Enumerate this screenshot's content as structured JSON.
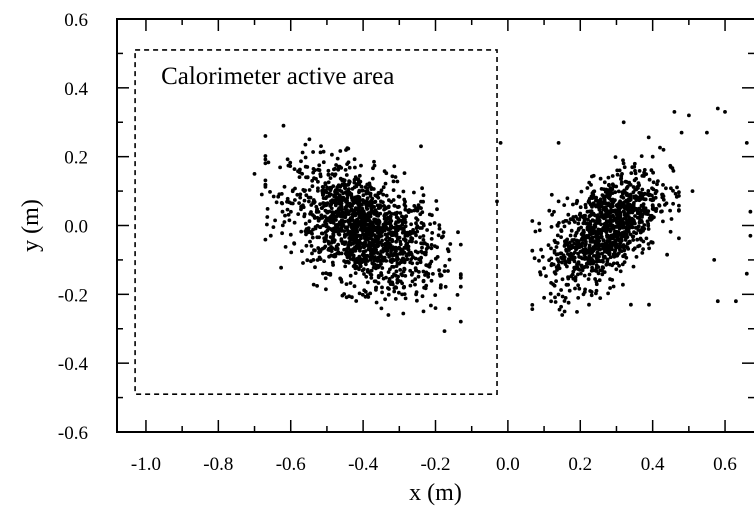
{
  "chart_data": {
    "type": "scatter",
    "title": "",
    "xlabel": "x (m)",
    "ylabel": "y (m)",
    "xlim": [
      -1.08,
      0.68
    ],
    "ylim": [
      -0.6,
      0.6
    ],
    "x_ticks": [
      "-1.0",
      "-0.8",
      "-0.6",
      "-0.4",
      "-0.2",
      "0.0",
      "0.2",
      "0.4",
      "0.6"
    ],
    "y_ticks": [
      "0.6",
      "0.4",
      "0.2",
      "0.0",
      "-0.2",
      "-0.4",
      "-0.6"
    ],
    "grid": false,
    "annotations": [
      {
        "text": "Calorimeter active area",
        "kind": "dashed-rectangle",
        "x_range": [
          -1.03,
          -0.03
        ],
        "y_range": [
          -0.49,
          0.51
        ]
      }
    ],
    "series": [
      {
        "center": [
          -0.4,
          -0.01
        ],
        "spread": [
          0.1,
          0.09
        ],
        "correlation": -0.45,
        "count": 1500
      },
      {
        "center": [
          0.27,
          -0.01
        ],
        "spread": [
          0.075,
          0.085
        ],
        "correlation": 0.55,
        "count": 1100
      }
    ],
    "outliers": [
      [
        -0.67,
        0.26
      ],
      [
        -0.62,
        0.29
      ],
      [
        -0.7,
        0.15
      ],
      [
        -0.68,
        0.09
      ],
      [
        -0.24,
        0.23
      ],
      [
        -0.2,
        -0.24
      ],
      [
        -0.19,
        -0.13
      ],
      [
        -0.21,
        0.03
      ],
      [
        -0.33,
        -0.26
      ],
      [
        -0.02,
        0.24
      ],
      [
        -0.03,
        0.07
      ],
      [
        0.14,
        0.24
      ],
      [
        0.1,
        -0.21
      ],
      [
        0.15,
        -0.26
      ],
      [
        0.14,
        0.07
      ],
      [
        0.32,
        0.3
      ],
      [
        0.39,
        -0.23
      ],
      [
        0.34,
        -0.23
      ],
      [
        0.46,
        0.33
      ],
      [
        0.5,
        0.32
      ],
      [
        0.55,
        0.27
      ],
      [
        0.58,
        0.34
      ],
      [
        0.6,
        0.33
      ],
      [
        0.57,
        -0.1
      ],
      [
        0.58,
        -0.22
      ],
      [
        0.63,
        -0.22
      ],
      [
        0.66,
        0.24
      ],
      [
        0.66,
        -0.14
      ],
      [
        0.67,
        -0.03
      ],
      [
        0.67,
        0.04
      ],
      [
        0.43,
        0.22
      ],
      [
        0.48,
        0.27
      ],
      [
        0.4,
        0.2
      ],
      [
        0.51,
        0.1
      ],
      [
        0.45,
        0.17
      ]
    ]
  }
}
